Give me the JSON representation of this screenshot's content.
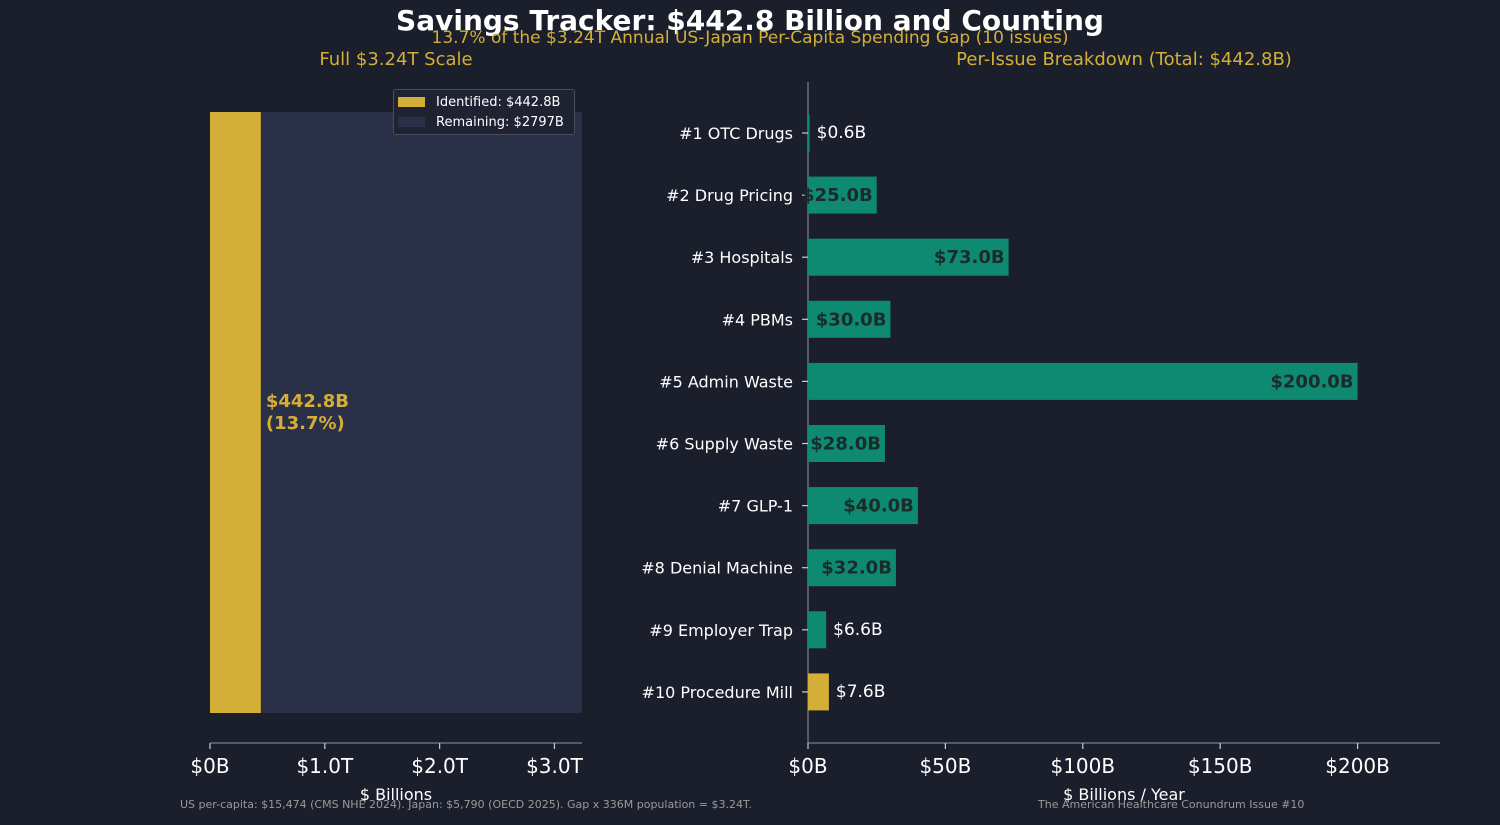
{
  "header": {
    "title": "Savings Tracker: $442.8 Billion and Counting",
    "subtitle": "13.7% of the $3.24T Annual US-Japan Per-Capita Spending Gap  (10 issues)"
  },
  "colors": {
    "background": "#1b1f2c",
    "gold": "#d4af37",
    "teal": "#0e8a72",
    "remaining": "#2b3049",
    "axis": "#6b6f7b",
    "value_label_dark": "#1b2a2a"
  },
  "footer": {
    "left": "US per-capita: $15,474 (CMS NHE 2024). Japan: $5,790 (OECD 2025). Gap x 336M population = $3.24T.",
    "right": "The American Healthcare Conundrum  Issue #10"
  },
  "chart_data": [
    {
      "type": "bar",
      "orientation": "stacked-horizontal",
      "title": "Full $3.24T Scale",
      "xlabel": "$ Billions",
      "xlim": [
        0,
        3240
      ],
      "xticks": [
        0,
        1000,
        2000,
        3000
      ],
      "xtick_labels": [
        "$0B",
        "$1.0T",
        "$2.0T",
        "$3.0T"
      ],
      "series": [
        {
          "name": "Identified: $442.8B",
          "value": 442.8,
          "color": "#d4af37"
        },
        {
          "name": "Remaining: $2797B",
          "value": 2797,
          "color": "#2b3049"
        }
      ],
      "annotation": [
        "$442.8B",
        "(13.7%)"
      ],
      "legend": "top-right"
    },
    {
      "type": "bar",
      "orientation": "horizontal",
      "title": "Per-Issue Breakdown (Total: $442.8B)",
      "xlabel": "$ Billions / Year",
      "xlim": [
        0,
        230
      ],
      "xticks": [
        0,
        50,
        100,
        150,
        200
      ],
      "xtick_labels": [
        "$0B",
        "$50B",
        "$100B",
        "$150B",
        "$200B"
      ],
      "categories": [
        "#1  OTC Drugs",
        "#2  Drug Pricing",
        "#3  Hospitals",
        "#4  PBMs",
        "#5  Admin Waste",
        "#6  Supply Waste",
        "#7  GLP-1",
        "#8  Denial Machine",
        "#9  Employer Trap",
        "#10 Procedure Mill"
      ],
      "values": [
        0.6,
        25.0,
        73.0,
        30.0,
        200.0,
        28.0,
        40.0,
        32.0,
        6.6,
        7.6
      ],
      "value_labels": [
        "$0.6B",
        "$25.0B",
        "$73.0B",
        "$30.0B",
        "$200.0B",
        "$28.0B",
        "$40.0B",
        "$32.0B",
        "$6.6B",
        "$7.6B"
      ],
      "highlight_last": true
    }
  ]
}
